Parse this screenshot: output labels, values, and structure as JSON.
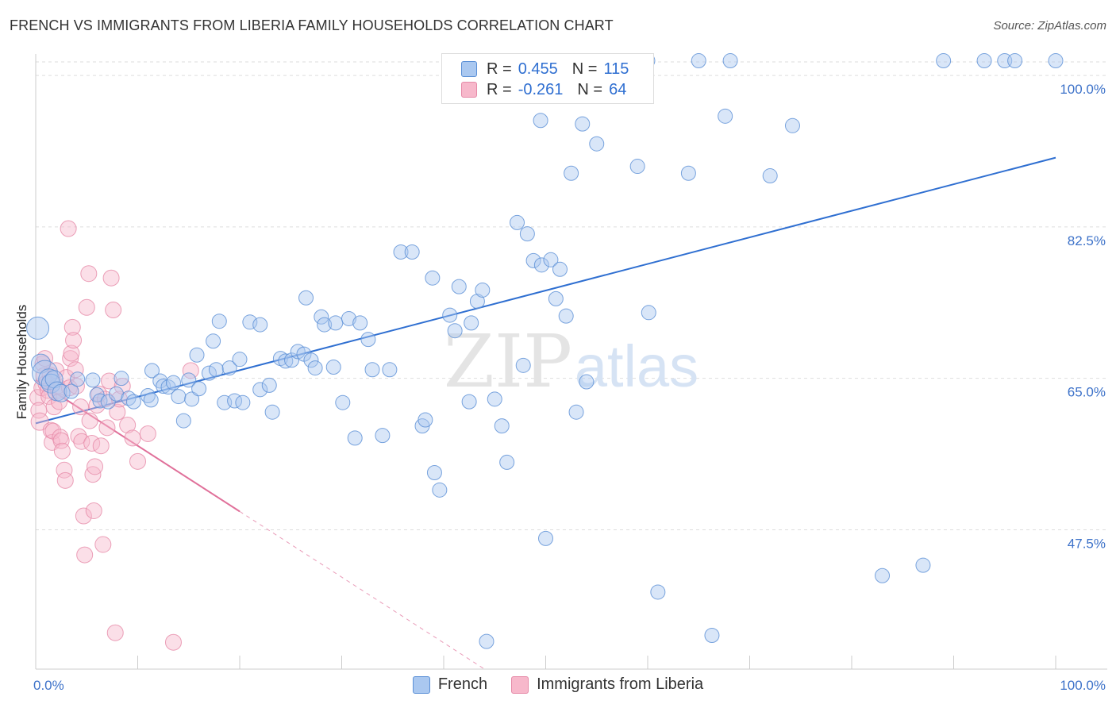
{
  "header": {
    "title": "FRENCH VS IMMIGRANTS FROM LIBERIA FAMILY HOUSEHOLDS CORRELATION CHART",
    "source": "Source: ZipAtlas.com"
  },
  "watermark": {
    "zip": "ZIP",
    "atlas": "atlas"
  },
  "legend": {
    "rows": [
      {
        "r_label": "R =",
        "r_value": "0.455",
        "n_label": "N =",
        "n_value": "115"
      },
      {
        "r_label": "R =",
        "r_value": "-0.261",
        "n_label": "N =",
        "n_value": "64"
      }
    ]
  },
  "colors": {
    "french_fill": "#aac8f0",
    "french_stroke": "#5a8fd6",
    "french_line": "#2f6fd1",
    "liberia_fill": "#f7b8cb",
    "liberia_stroke": "#e68aa8",
    "liberia_line": "#e0709a",
    "axis_label": "#3d72c9",
    "grid": "#dddddd"
  },
  "chart_data": {
    "type": "scatter",
    "title": "FRENCH VS IMMIGRANTS FROM LIBERIA FAMILY HOUSEHOLDS CORRELATION CHART",
    "xlabel": "",
    "ylabel": "Family Households",
    "xlim": [
      0,
      100
    ],
    "ylim": [
      31.4,
      102.3
    ],
    "x_tick_labels": [
      "0.0%",
      "100.0%"
    ],
    "y_ticks": [
      47.5,
      65.0,
      82.5,
      100.0
    ],
    "y_tick_labels": [
      "47.5%",
      "65.0%",
      "82.5%",
      "100.0%"
    ],
    "legend_position": "bottom-center",
    "series": [
      {
        "name": "French",
        "r": 0.455,
        "n": 115,
        "trend": {
          "x0": 0,
          "y0": 59.8,
          "x1": 100,
          "y1": 90.5,
          "dashed_from": null
        },
        "points": [
          [
            0.2,
            70.8,
            1.4
          ],
          [
            0.5,
            66.7,
            1.2
          ],
          [
            0.9,
            65.6,
            1.6
          ],
          [
            1.3,
            64.9,
            1.3
          ],
          [
            1.5,
            64.4,
            1.2
          ],
          [
            1.8,
            64.9,
            1.1
          ],
          [
            2.1,
            63.5,
            1.2
          ],
          [
            2.5,
            63.3,
            1.1
          ],
          [
            3.5,
            63.5,
            0.9
          ],
          [
            4.1,
            64.9,
            0.9
          ],
          [
            5.6,
            64.8,
            0.9
          ],
          [
            6.0,
            63.1,
            0.9
          ],
          [
            6.3,
            62.4,
            0.9
          ],
          [
            7.1,
            62.3,
            0.9
          ],
          [
            8.4,
            65.0,
            0.9
          ],
          [
            7.9,
            63.2,
            0.9
          ],
          [
            9.1,
            62.7,
            0.9
          ],
          [
            9.6,
            62.3,
            0.9
          ],
          [
            11.0,
            63.0,
            0.9
          ],
          [
            11.3,
            62.5,
            0.9
          ],
          [
            11.4,
            65.9,
            0.9
          ],
          [
            12.2,
            64.7,
            0.9
          ],
          [
            12.5,
            64.1,
            0.9
          ],
          [
            13.0,
            64.0,
            0.9
          ],
          [
            13.5,
            64.5,
            0.9
          ],
          [
            14.0,
            62.9,
            0.9
          ],
          [
            14.5,
            60.1,
            0.9
          ],
          [
            15.0,
            64.8,
            0.9
          ],
          [
            15.3,
            62.6,
            0.9
          ],
          [
            15.8,
            67.7,
            0.9
          ],
          [
            16.0,
            63.8,
            0.9
          ],
          [
            17.0,
            65.6,
            0.9
          ],
          [
            17.4,
            69.3,
            0.9
          ],
          [
            17.7,
            66.0,
            0.9
          ],
          [
            18.0,
            71.6,
            0.9
          ],
          [
            18.5,
            62.2,
            0.9
          ],
          [
            19.0,
            66.2,
            0.9
          ],
          [
            19.5,
            62.4,
            0.9
          ],
          [
            20.0,
            67.2,
            0.9
          ],
          [
            20.3,
            62.2,
            0.9
          ],
          [
            21.0,
            71.5,
            0.9
          ],
          [
            22.0,
            63.7,
            0.9
          ],
          [
            22.0,
            71.2,
            0.9
          ],
          [
            22.9,
            64.2,
            0.9
          ],
          [
            23.2,
            61.1,
            0.9
          ],
          [
            24.0,
            67.3,
            0.9
          ],
          [
            24.5,
            67.0,
            0.9
          ],
          [
            25.1,
            67.1,
            0.9
          ],
          [
            25.7,
            68.1,
            0.9
          ],
          [
            26.3,
            67.8,
            0.9
          ],
          [
            26.5,
            74.3,
            0.9
          ],
          [
            27.0,
            67.1,
            0.9
          ],
          [
            27.4,
            66.2,
            0.9
          ],
          [
            28.0,
            72.1,
            0.9
          ],
          [
            28.3,
            71.2,
            0.9
          ],
          [
            29.2,
            66.3,
            0.9
          ],
          [
            29.4,
            71.4,
            0.9
          ],
          [
            30.1,
            62.2,
            0.9
          ],
          [
            30.7,
            71.9,
            0.9
          ],
          [
            31.3,
            58.1,
            0.9
          ],
          [
            31.8,
            71.4,
            0.9
          ],
          [
            32.6,
            69.5,
            0.9
          ],
          [
            33.0,
            66.0,
            0.9
          ],
          [
            34.0,
            58.4,
            0.9
          ],
          [
            34.7,
            66.0,
            0.9
          ],
          [
            35.8,
            79.6,
            0.9
          ],
          [
            36.9,
            79.6,
            0.9
          ],
          [
            37.9,
            59.5,
            0.9
          ],
          [
            38.2,
            60.2,
            0.9
          ],
          [
            38.9,
            76.6,
            0.9
          ],
          [
            39.1,
            54.1,
            0.9
          ],
          [
            39.6,
            52.1,
            0.9
          ],
          [
            40.6,
            72.3,
            0.9
          ],
          [
            41.1,
            70.5,
            0.9
          ],
          [
            41.5,
            75.6,
            0.9
          ],
          [
            42.5,
            62.3,
            0.9
          ],
          [
            42.7,
            71.4,
            0.9
          ],
          [
            43.3,
            73.9,
            0.9
          ],
          [
            43.8,
            75.2,
            0.9
          ],
          [
            44.2,
            34.6,
            0.9
          ],
          [
            45.0,
            62.6,
            0.9
          ],
          [
            45.7,
            59.5,
            0.9
          ],
          [
            46.2,
            55.3,
            0.9
          ],
          [
            47.2,
            83.0,
            0.9
          ],
          [
            47.8,
            66.5,
            0.9
          ],
          [
            48.2,
            81.7,
            0.9
          ],
          [
            48.8,
            78.6,
            0.9
          ],
          [
            49.6,
            78.1,
            0.9
          ],
          [
            49.5,
            94.8,
            0.9
          ],
          [
            50.0,
            46.5,
            0.9
          ],
          [
            50.5,
            78.7,
            0.9
          ],
          [
            51.0,
            74.2,
            0.9
          ],
          [
            51.4,
            77.6,
            0.9
          ],
          [
            52.0,
            72.2,
            0.9
          ],
          [
            52.5,
            88.7,
            0.9
          ],
          [
            53.0,
            61.1,
            0.9
          ],
          [
            53.6,
            94.4,
            0.9
          ],
          [
            54.0,
            64.6,
            0.9
          ],
          [
            55.0,
            92.1,
            0.9
          ],
          [
            59.0,
            89.5,
            0.9
          ],
          [
            60.0,
            101.7,
            0.9
          ],
          [
            60.1,
            72.6,
            0.9
          ],
          [
            61.0,
            40.3,
            0.9
          ],
          [
            64.0,
            88.7,
            0.9
          ],
          [
            65.0,
            101.7,
            0.9
          ],
          [
            66.3,
            35.3,
            0.9
          ],
          [
            67.6,
            95.3,
            0.9
          ],
          [
            68.1,
            101.7,
            0.9
          ],
          [
            72.0,
            88.4,
            0.9
          ],
          [
            74.2,
            94.2,
            0.9
          ],
          [
            83.0,
            42.2,
            0.9
          ],
          [
            87.0,
            43.4,
            0.9
          ],
          [
            89.0,
            101.7,
            0.9
          ],
          [
            93.0,
            101.7,
            0.9
          ],
          [
            95.0,
            101.7,
            0.9
          ],
          [
            96.0,
            101.7,
            0.9
          ],
          [
            100.0,
            101.7,
            0.9
          ]
        ]
      },
      {
        "name": "Immigrants from Liberia",
        "r": -0.261,
        "n": 64,
        "trend": {
          "x0": 0,
          "y0": 64.8,
          "x1": 44.0,
          "y1": 31.4,
          "dashed_from": 20.0
        },
        "points": [
          [
            0.2,
            62.8,
            1.0
          ],
          [
            0.3,
            61.3,
            1.0
          ],
          [
            0.4,
            60.0,
            1.1
          ],
          [
            0.6,
            63.9,
            1.0
          ],
          [
            0.7,
            66.7,
            1.0
          ],
          [
            0.8,
            65.3,
            1.0
          ],
          [
            0.9,
            67.3,
            1.0
          ],
          [
            1.0,
            64.4,
            1.0
          ],
          [
            1.2,
            63.6,
            1.0
          ],
          [
            1.3,
            62.9,
            1.0
          ],
          [
            1.4,
            65.4,
            1.0
          ],
          [
            1.5,
            59.0,
            1.0
          ],
          [
            1.6,
            57.6,
            1.0
          ],
          [
            1.7,
            58.9,
            1.0
          ],
          [
            1.8,
            61.7,
            1.0
          ],
          [
            2.0,
            65.9,
            1.0
          ],
          [
            2.1,
            64.1,
            1.0
          ],
          [
            2.2,
            63.6,
            1.0
          ],
          [
            2.3,
            62.3,
            1.0
          ],
          [
            2.4,
            58.2,
            1.0
          ],
          [
            2.5,
            57.8,
            1.0
          ],
          [
            2.6,
            56.6,
            1.0
          ],
          [
            2.8,
            54.4,
            1.0
          ],
          [
            2.9,
            53.2,
            1.0
          ],
          [
            3.0,
            65.1,
            1.0
          ],
          [
            3.2,
            82.3,
            1.0
          ],
          [
            3.3,
            63.9,
            1.0
          ],
          [
            3.4,
            67.3,
            1.0
          ],
          [
            3.5,
            67.9,
            1.0
          ],
          [
            3.6,
            70.9,
            1.0
          ],
          [
            3.7,
            69.4,
            1.0
          ],
          [
            3.9,
            66.0,
            1.0
          ],
          [
            4.0,
            64.1,
            1.0
          ],
          [
            4.2,
            58.3,
            1.0
          ],
          [
            4.4,
            61.7,
            1.0
          ],
          [
            4.5,
            57.7,
            1.0
          ],
          [
            4.7,
            49.1,
            1.0
          ],
          [
            4.8,
            44.6,
            1.0
          ],
          [
            5.0,
            73.2,
            1.0
          ],
          [
            5.2,
            77.1,
            1.0
          ],
          [
            5.3,
            60.1,
            1.0
          ],
          [
            5.5,
            57.5,
            1.0
          ],
          [
            5.6,
            53.9,
            1.0
          ],
          [
            5.7,
            49.7,
            1.0
          ],
          [
            5.8,
            54.8,
            1.0
          ],
          [
            6.0,
            61.9,
            1.0
          ],
          [
            6.2,
            63.2,
            1.0
          ],
          [
            6.4,
            57.2,
            1.0
          ],
          [
            6.6,
            45.8,
            1.0
          ],
          [
            6.8,
            62.6,
            1.0
          ],
          [
            7.0,
            59.3,
            1.0
          ],
          [
            7.2,
            64.7,
            1.0
          ],
          [
            7.4,
            76.6,
            1.0
          ],
          [
            7.6,
            72.9,
            1.0
          ],
          [
            7.8,
            35.6,
            1.0
          ],
          [
            8.0,
            61.1,
            1.0
          ],
          [
            8.2,
            62.6,
            1.0
          ],
          [
            8.5,
            64.1,
            1.0
          ],
          [
            9.0,
            59.6,
            1.0
          ],
          [
            9.5,
            58.1,
            1.0
          ],
          [
            10.0,
            55.4,
            1.0
          ],
          [
            11.0,
            58.6,
            1.0
          ],
          [
            13.5,
            34.5,
            1.0
          ],
          [
            15.2,
            65.9,
            1.0
          ]
        ]
      }
    ]
  },
  "bottom_legend": {
    "items": [
      {
        "label": "French"
      },
      {
        "label": "Immigrants from Liberia"
      }
    ]
  }
}
